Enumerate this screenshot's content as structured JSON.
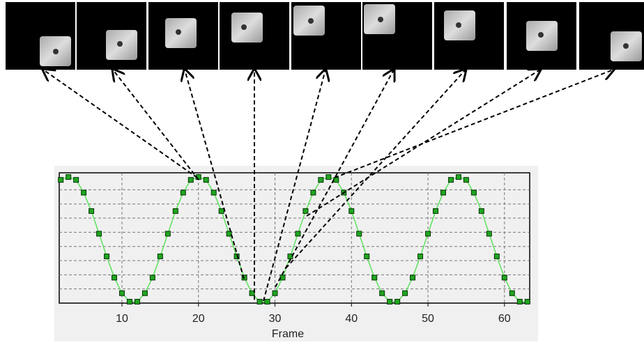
{
  "chart_data": {
    "type": "line",
    "xlabel": "Frame",
    "x": [
      2,
      3,
      4,
      5,
      6,
      7,
      8,
      9,
      10,
      11,
      12,
      13,
      14,
      15,
      16,
      17,
      18,
      19,
      20,
      21,
      22,
      23,
      24,
      25,
      26,
      27,
      28,
      29,
      30,
      31,
      32,
      33,
      34,
      35,
      36,
      37,
      38,
      39,
      40,
      41,
      42,
      43,
      44,
      45,
      46,
      47,
      48,
      49,
      50,
      51,
      52,
      53,
      54,
      55,
      56,
      57,
      58,
      59,
      60,
      61,
      62,
      63
    ],
    "series": [
      {
        "color": "#1fa51f",
        "values": [
          8.7,
          8.9,
          8.7,
          7.8,
          6.5,
          4.9,
          3.3,
          1.8,
          0.7,
          0.1,
          0.1,
          0.7,
          1.8,
          3.3,
          4.9,
          6.5,
          7.8,
          8.7,
          8.9,
          8.7,
          7.8,
          6.5,
          4.9,
          3.3,
          1.8,
          0.7,
          0.1,
          0.1,
          0.7,
          1.8,
          3.3,
          4.9,
          6.5,
          7.8,
          8.7,
          8.9,
          8.7,
          7.8,
          6.5,
          4.9,
          3.3,
          1.8,
          0.7,
          0.1,
          0.1,
          0.7,
          1.8,
          3.3,
          4.9,
          6.5,
          7.8,
          8.7,
          8.9,
          8.7,
          7.8,
          6.5,
          4.9,
          3.3,
          1.8,
          0.7,
          0.1,
          0.1
        ]
      }
    ],
    "xlim": [
      1.8,
      63.3
    ],
    "xticks": [
      10,
      20,
      30,
      40,
      50,
      60
    ],
    "ylim": [
      0,
      9.2
    ],
    "ygrid": [
      1,
      2,
      3,
      4,
      5,
      6,
      7,
      8
    ],
    "grid": true
  }
}
